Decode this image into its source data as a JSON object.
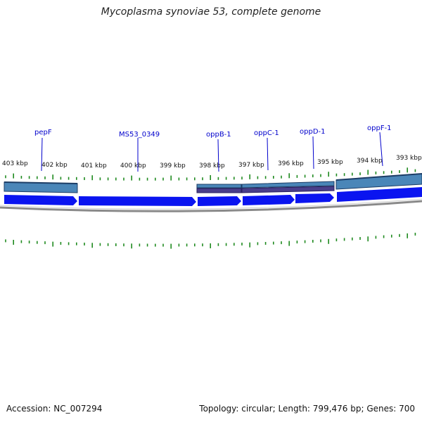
{
  "title": "Mycoplasma synoviae 53, complete genome",
  "accession_label": "Accession: NC_007294",
  "summary_label": "Topology: circular; Length: 799,476 bp; Genes: 700",
  "colors": {
    "tick": "#1f8a1f",
    "label": "#0000cc",
    "gene_arrow": "#0a14f0",
    "backbone": "#8a8a8a",
    "feature_blue": "#4a86b8",
    "feature_purple": "#4a3f8a"
  },
  "scale_labels": [
    "403 kbp",
    "402 kbp",
    "401 kbp",
    "400 kbp",
    "399 kbp",
    "398 kbp",
    "397 kbp",
    "396 kbp",
    "395 kbp",
    "394 kbp",
    "393 kbp"
  ],
  "gene_labels": [
    "pepF",
    "MS53_0349",
    "oppB-1",
    "oppC-1",
    "oppD-1",
    "oppF-1"
  ]
}
